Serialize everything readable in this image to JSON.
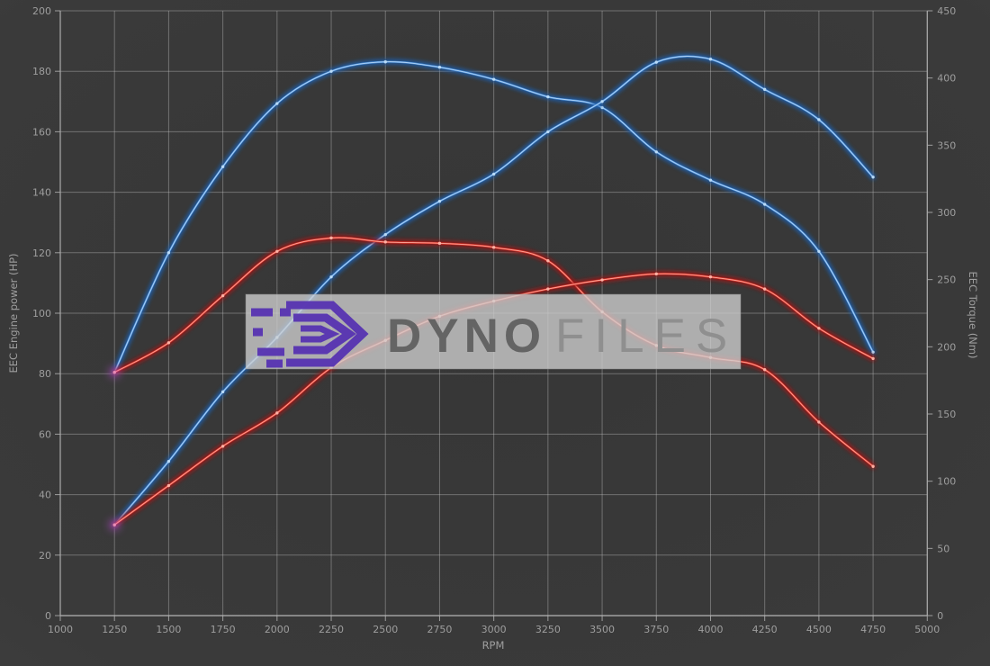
{
  "chart": {
    "xlabel": "RPM",
    "x_axis": {
      "min": 1000,
      "max": 5000,
      "tick_step": 250
    },
    "left_axis": {
      "label": "EEC Engine power (HP)",
      "min": 0,
      "max": 200,
      "tick_step": 20
    },
    "right_axis": {
      "label": "EEC Torque (Nm)",
      "min": 0,
      "max": 450,
      "tick_step": 50
    }
  },
  "chart_data": {
    "type": "line",
    "title": "",
    "xlabel": "RPM",
    "ylabel_left": "EEC Engine power (HP)",
    "ylabel_right": "EEC Torque (Nm)",
    "xlim": [
      1000,
      5000
    ],
    "ylim_left": [
      0,
      200
    ],
    "ylim_right": [
      0,
      450
    ],
    "grid": true,
    "legend": "none",
    "x": [
      1250,
      1500,
      1750,
      2000,
      2250,
      2500,
      2750,
      3000,
      3250,
      3500,
      3750,
      4000,
      4250,
      4500,
      4750
    ],
    "series": [
      {
        "name": "torque-blue",
        "unit": "Nm",
        "axis": "right",
        "color": "#4f92dc",
        "color_glow": "#1d5fae",
        "color_center": "#bcdcf8",
        "values": [
          181,
          270,
          334,
          381,
          405,
          412,
          408,
          399,
          386,
          378,
          345,
          324,
          306,
          271,
          196
        ]
      },
      {
        "name": "power-blue",
        "unit": "HP",
        "axis": "left",
        "color": "#4f92dc",
        "color_glow": "#1d5fae",
        "color_center": "#bcdcf8",
        "values": [
          30,
          51,
          74,
          92,
          112,
          126,
          137,
          146,
          160,
          170,
          183,
          184,
          174,
          164,
          145
        ]
      },
      {
        "name": "torque-red",
        "unit": "Nm",
        "axis": "right",
        "color": "#e1392d",
        "color_glow": "#a01818",
        "color_center": "#ffb3a6",
        "values": [
          181,
          203,
          238,
          271,
          281,
          278,
          277,
          274,
          264,
          226,
          201,
          192,
          183,
          144,
          111
        ]
      },
      {
        "name": "power-red",
        "unit": "HP",
        "axis": "left",
        "color": "#e1392d",
        "color_glow": "#a01818",
        "color_center": "#ffb3a6",
        "values": [
          30,
          43,
          56,
          67,
          82,
          91,
          99,
          104,
          108,
          111,
          113,
          112,
          108,
          95,
          85
        ]
      }
    ],
    "start_marker_color": "#c050d8"
  },
  "watermark": {
    "primary": "DYNO",
    "secondary": "FILES"
  }
}
